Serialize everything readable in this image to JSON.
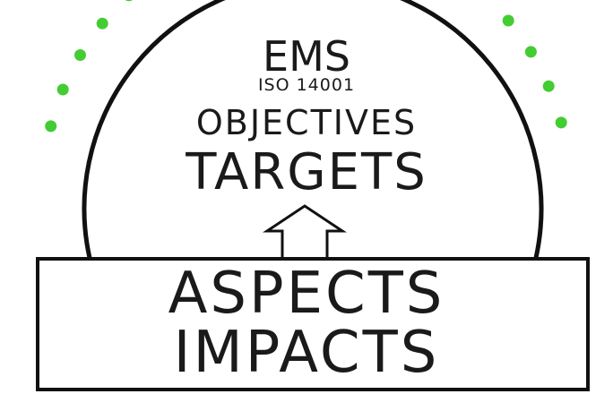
{
  "colors": {
    "dots": "#44cc33",
    "line": "#111111",
    "text": "#1a1a1a",
    "background": "#ffffff"
  },
  "circle": {
    "title": "EMS",
    "subtitle": "ISO 14001",
    "line1": "OBJECTIVES",
    "line2": "TARGETS"
  },
  "arrow": {
    "direction": "up"
  },
  "box": {
    "line1": "ASPECTS",
    "line2": "IMPACTS"
  }
}
